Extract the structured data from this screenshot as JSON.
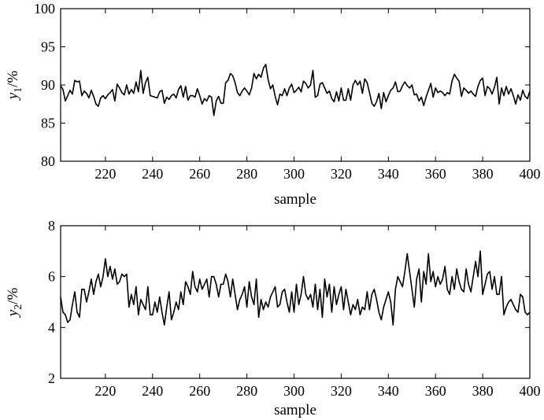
{
  "chart_data": [
    {
      "type": "line",
      "title": "",
      "xlabel": "sample",
      "ylabel": {
        "var": "y",
        "sub": "1",
        "unit": "/%"
      },
      "xlim": [
        201,
        400
      ],
      "ylim": [
        80,
        100
      ],
      "xticks": [
        220,
        240,
        260,
        280,
        300,
        320,
        340,
        360,
        380,
        400
      ],
      "yticks": [
        80,
        85,
        90,
        95,
        100
      ],
      "grid": false,
      "series": [
        {
          "color": "#000000",
          "x_start": 201,
          "x_step": 1,
          "values": [
            89.9,
            89.4,
            87.9,
            88.6,
            89.3,
            88.8,
            90.6,
            90.4,
            90.5,
            88.6,
            89.2,
            88.9,
            88.3,
            89.3,
            88.5,
            87.5,
            87.2,
            88.3,
            88.6,
            88.2,
            88.7,
            89.0,
            89.4,
            87.9,
            90.1,
            89.6,
            89.0,
            88.7,
            90.0,
            88.8,
            89.4,
            88.9,
            90.4,
            89.1,
            91.9,
            88.9,
            90.3,
            91.0,
            88.6,
            88.5,
            88.4,
            88.3,
            89.1,
            89.3,
            87.6,
            88.4,
            88.1,
            88.6,
            88.8,
            88.3,
            89.4,
            89.9,
            88.4,
            89.8,
            88.0,
            88.6,
            88.6,
            88.4,
            89.5,
            88.6,
            87.5,
            88.2,
            87.9,
            88.6,
            88.4,
            86.0,
            87.9,
            88.5,
            87.6,
            87.6,
            90.3,
            90.6,
            91.5,
            91.2,
            90.3,
            89.0,
            88.6,
            89.2,
            89.6,
            89.2,
            88.7,
            89.6,
            91.5,
            90.8,
            91.4,
            91.0,
            92.2,
            92.7,
            90.7,
            89.5,
            90.0,
            88.5,
            87.4,
            88.8,
            88.6,
            89.5,
            88.6,
            89.6,
            90.1,
            89.0,
            89.3,
            89.7,
            89.1,
            90.5,
            90.2,
            89.6,
            90.0,
            91.9,
            88.4,
            88.6,
            90.1,
            90.3,
            89.6,
            88.9,
            89.2,
            88.2,
            87.8,
            89.1,
            87.9,
            89.6,
            88.0,
            88.0,
            89.5,
            88.0,
            90.0,
            90.6,
            90.0,
            90.5,
            88.9,
            90.8,
            90.3,
            89.0,
            87.6,
            87.2,
            87.8,
            88.9,
            86.9,
            89.0,
            87.8,
            88.6,
            89.3,
            89.6,
            90.4,
            89.1,
            89.2,
            89.9,
            90.4,
            89.9,
            89.6,
            90.0,
            88.7,
            88.8,
            87.9,
            88.4,
            87.3,
            88.4,
            89.3,
            90.2,
            88.4,
            89.6,
            89.0,
            89.2,
            89.0,
            88.6,
            89.0,
            88.8,
            90.5,
            91.4,
            90.9,
            90.5,
            88.5,
            89.6,
            89.3,
            88.9,
            89.2,
            88.8,
            88.5,
            89.8,
            90.6,
            90.9,
            88.6,
            89.8,
            89.5,
            88.8,
            89.7,
            91.0,
            87.5,
            89.6,
            88.6,
            89.8,
            88.8,
            89.5,
            88.6,
            87.5,
            88.7,
            88.0,
            89.3,
            88.5,
            88.2,
            89.2
          ]
        }
      ]
    },
    {
      "type": "line",
      "title": "",
      "xlabel": "sample",
      "ylabel": {
        "var": "y",
        "sub": "2",
        "unit": "/%"
      },
      "xlim": [
        201,
        400
      ],
      "ylim": [
        2,
        8
      ],
      "xticks": [
        220,
        240,
        260,
        280,
        300,
        320,
        340,
        360,
        380,
        400
      ],
      "yticks": [
        2,
        4,
        6,
        8
      ],
      "grid": false,
      "series": [
        {
          "color": "#000000",
          "x_start": 201,
          "x_step": 1,
          "values": [
            5.2,
            4.6,
            4.5,
            4.2,
            4.3,
            4.9,
            5.4,
            4.6,
            4.4,
            5.5,
            5.5,
            5.0,
            5.4,
            5.9,
            5.3,
            5.8,
            6.1,
            5.6,
            6.0,
            6.7,
            6.0,
            6.4,
            5.9,
            6.3,
            5.7,
            5.8,
            6.1,
            6.0,
            6.1,
            4.8,
            5.3,
            4.9,
            5.6,
            4.5,
            5.1,
            4.9,
            4.7,
            5.6,
            4.5,
            4.5,
            5.0,
            4.6,
            5.2,
            4.6,
            4.1,
            4.8,
            5.4,
            4.3,
            4.6,
            5.0,
            4.7,
            5.4,
            4.9,
            5.8,
            5.6,
            5.3,
            6.2,
            5.6,
            5.4,
            5.9,
            5.5,
            5.7,
            5.9,
            5.2,
            6.0,
            6.0,
            5.7,
            5.2,
            5.7,
            5.7,
            6.1,
            5.8,
            5.2,
            5.9,
            5.3,
            4.7,
            5.1,
            5.3,
            5.6,
            4.8,
            5.8,
            5.2,
            4.9,
            5.9,
            4.4,
            5.1,
            4.7,
            5.0,
            4.8,
            5.2,
            5.4,
            5.6,
            4.8,
            4.9,
            5.4,
            5.5,
            5.0,
            4.6,
            5.4,
            4.6,
            5.7,
            4.9,
            5.3,
            6.0,
            5.3,
            5.1,
            5.3,
            4.8,
            5.7,
            4.7,
            5.5,
            4.4,
            5.9,
            5.2,
            5.7,
            4.6,
            5.6,
            4.9,
            5.3,
            5.6,
            4.7,
            5.5,
            5.0,
            4.5,
            4.9,
            4.7,
            5.1,
            4.5,
            4.8,
            4.7,
            5.4,
            4.7,
            5.3,
            5.5,
            5.1,
            4.6,
            4.3,
            4.8,
            5.1,
            5.4,
            5.0,
            4.1,
            5.5,
            6.0,
            5.8,
            5.6,
            6.2,
            6.9,
            6.2,
            5.5,
            4.8,
            5.9,
            6.3,
            5.0,
            6.2,
            5.7,
            6.9,
            5.8,
            6.2,
            5.6,
            6.0,
            5.7,
            5.9,
            6.4,
            5.5,
            5.3,
            6.0,
            5.5,
            6.3,
            5.8,
            5.5,
            5.4,
            6.3,
            5.7,
            5.4,
            6.0,
            6.6,
            6.0,
            7.0,
            5.3,
            5.7,
            6.1,
            6.2,
            5.5,
            6.0,
            5.3,
            5.3,
            6.0,
            4.5,
            4.8,
            5.0,
            5.1,
            4.9,
            4.7,
            4.6,
            5.3,
            5.2,
            4.6,
            4.5,
            4.6
          ]
        }
      ]
    }
  ]
}
